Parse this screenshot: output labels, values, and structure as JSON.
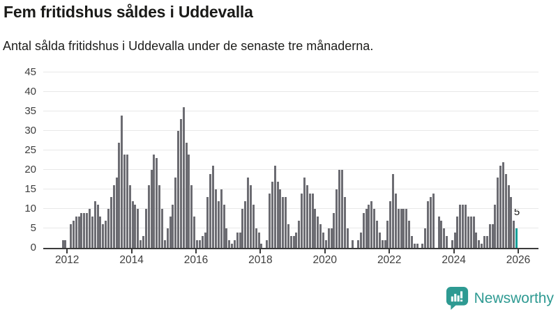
{
  "header": {
    "title": "Fem fritidshus såldes i Uddevalla",
    "subtitle": "Antal sålda fritidshus i Uddevalla under de senaste tre månaderna."
  },
  "chart_data": {
    "type": "bar",
    "title": "Fem fritidshus såldes i Uddevalla",
    "subtitle": "Antal sålda fritidshus i Uddevalla under de senaste tre månaderna.",
    "interval": "monthly",
    "ylim": [
      0,
      45
    ],
    "grid": true,
    "y_ticks": [
      0,
      5,
      10,
      15,
      20,
      25,
      30,
      35,
      40,
      45
    ],
    "x_ticks": [
      "2012",
      "2014",
      "2016",
      "2018",
      "2020",
      "2022",
      "2024",
      "2026"
    ],
    "tick_spacing_months": 24,
    "first_tick_offset_bars": 2,
    "bar_color": "#6c6c72",
    "highlight_color": "#0d9f98",
    "highlight_last": true,
    "highlight_label": "5",
    "values": [
      2,
      2,
      0,
      6,
      7,
      8,
      8,
      9,
      9,
      9,
      10,
      8,
      12,
      11,
      8,
      6,
      7,
      10,
      13,
      16,
      18,
      27,
      34,
      24,
      24,
      16,
      12,
      11,
      10,
      2,
      3,
      10,
      16,
      20,
      24,
      23,
      16,
      10,
      2,
      5,
      8,
      11,
      18,
      30,
      33,
      36,
      27,
      24,
      16,
      8,
      2,
      2,
      3,
      4,
      13,
      19,
      21,
      15,
      12,
      15,
      11,
      5,
      2,
      1,
      2,
      4,
      4,
      10,
      12,
      18,
      16,
      11,
      5,
      4,
      1,
      0,
      2,
      14,
      17,
      21,
      17,
      15,
      13,
      13,
      6,
      3,
      3,
      4,
      7,
      14,
      18,
      16,
      14,
      14,
      10,
      8,
      6,
      4,
      2,
      5,
      5,
      9,
      15,
      20,
      20,
      13,
      5,
      0,
      2,
      0,
      2,
      4,
      9,
      10,
      11,
      12,
      10,
      7,
      4,
      2,
      2,
      7,
      12,
      19,
      14,
      10,
      10,
      10,
      10,
      7,
      3,
      1,
      1,
      0,
      1,
      5,
      12,
      13,
      14,
      0,
      8,
      7,
      5,
      3,
      0,
      2,
      4,
      8,
      11,
      11,
      11,
      8,
      8,
      8,
      4,
      2,
      1,
      3,
      3,
      6,
      6,
      11,
      18,
      21,
      22,
      19,
      16,
      13,
      7,
      5
    ]
  },
  "branding": {
    "logo_text": "Newsworthy",
    "logo_color": "#2e9a92"
  }
}
